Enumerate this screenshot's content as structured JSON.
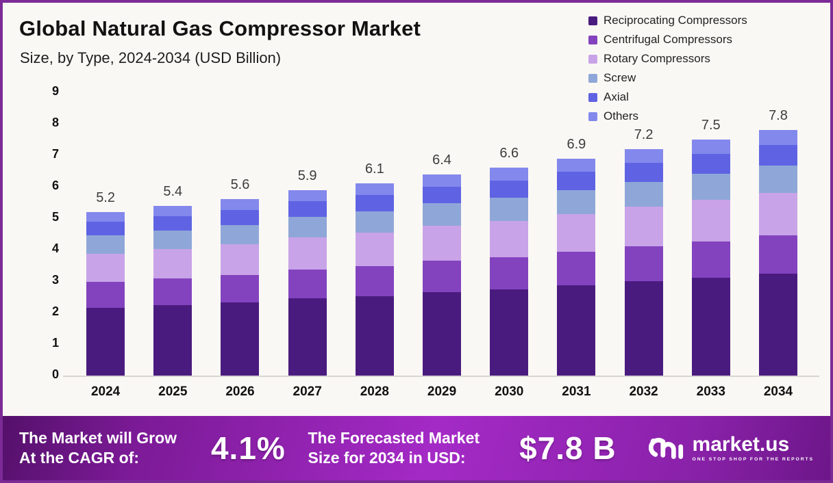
{
  "header": {
    "title": "Global Natural Gas Compressor Market",
    "subtitle": "Size, by Type, 2024-2034 (USD Billion)"
  },
  "chart_data": {
    "type": "bar",
    "stacked": true,
    "title": "Global Natural Gas Compressor Market Size, by Type, 2024-2034 (USD Billion)",
    "categories": [
      "2024",
      "2025",
      "2026",
      "2027",
      "2028",
      "2029",
      "2030",
      "2031",
      "2032",
      "2033",
      "2034"
    ],
    "totals": [
      5.2,
      5.4,
      5.6,
      5.9,
      6.1,
      6.4,
      6.6,
      6.9,
      7.2,
      7.5,
      7.8
    ],
    "series": [
      {
        "name": "Reciprocating Compressors",
        "color": "#4a1b7f",
        "values": [
          2.16,
          2.24,
          2.32,
          2.45,
          2.53,
          2.66,
          2.74,
          2.86,
          2.99,
          3.11,
          3.24
        ]
      },
      {
        "name": "Centrifugal Compressors",
        "color": "#8343bf",
        "values": [
          0.81,
          0.84,
          0.87,
          0.91,
          0.95,
          0.99,
          1.02,
          1.07,
          1.12,
          1.16,
          1.21
        ]
      },
      {
        "name": "Rotary Compressors",
        "color": "#c8a3e8",
        "values": [
          0.91,
          0.95,
          0.98,
          1.03,
          1.07,
          1.12,
          1.16,
          1.21,
          1.26,
          1.31,
          1.36
        ]
      },
      {
        "name": "Screw",
        "color": "#8fa7d8",
        "values": [
          0.57,
          0.59,
          0.62,
          0.65,
          0.67,
          0.7,
          0.73,
          0.76,
          0.79,
          0.83,
          0.86
        ]
      },
      {
        "name": "Axial",
        "color": "#5f63e3",
        "values": [
          0.44,
          0.45,
          0.47,
          0.5,
          0.51,
          0.54,
          0.55,
          0.58,
          0.6,
          0.63,
          0.65
        ]
      },
      {
        "name": "Others",
        "color": "#8388ec",
        "values": [
          0.31,
          0.33,
          0.34,
          0.36,
          0.37,
          0.39,
          0.4,
          0.42,
          0.44,
          0.46,
          0.48
        ]
      }
    ],
    "xlabel": "",
    "ylabel": "",
    "ylim": [
      0,
      9
    ],
    "yticks": [
      0,
      1,
      2,
      3,
      4,
      5,
      6,
      7,
      8,
      9
    ],
    "grid": false,
    "legend_position": "top-right"
  },
  "banner": {
    "cagr_line1": "The Market will Grow",
    "cagr_line2": "At the CAGR of:",
    "cagr_value": "4.1%",
    "forecast_line1": "The Forecasted Market",
    "forecast_line2": "Size for 2034 in USD:",
    "forecast_value": "$7.8 B",
    "logo_name": "market.us",
    "logo_tagline": "ONE STOP SHOP FOR THE REPORTS"
  }
}
